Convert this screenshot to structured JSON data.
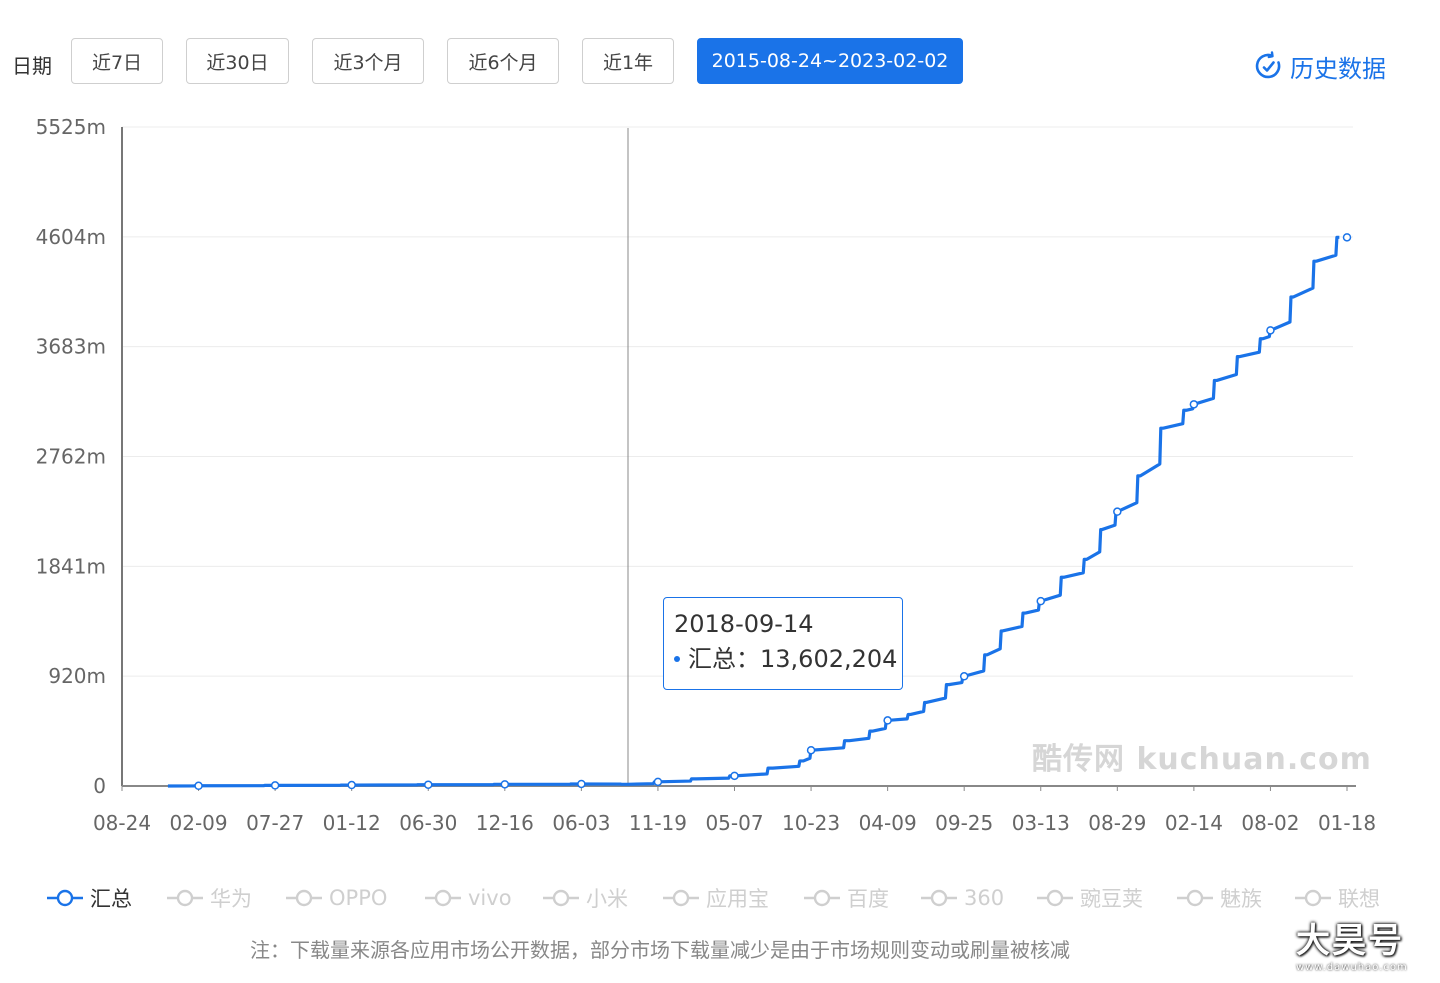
{
  "toolbar": {
    "date_label": "日期",
    "ranges": [
      "近7日",
      "近30日",
      "近3个月",
      "近6个月",
      "近1年",
      "2015-08-24~2023-02-02"
    ],
    "active_range": "2015-08-24~2023-02-02",
    "history_label": "历史数据"
  },
  "colors": {
    "accent": "#1a73e8",
    "inactive_legend": "#cfcfcf"
  },
  "chart_data": {
    "type": "line",
    "yticks": [
      "0",
      "920m",
      "1841m",
      "2762m",
      "3683m",
      "4604m",
      "5525m"
    ],
    "ylim": [
      0,
      5525
    ],
    "xticks": [
      "08-24",
      "02-09",
      "07-27",
      "01-12",
      "06-30",
      "12-16",
      "06-03",
      "11-19",
      "05-07",
      "10-23",
      "04-09",
      "09-25",
      "03-13",
      "08-29",
      "02-14",
      "08-02",
      "01-18"
    ],
    "grid": true,
    "series": [
      {
        "name": "汇总",
        "x_index": [
          0.6,
          1,
          2,
          3,
          4,
          5,
          6,
          6.6,
          7,
          7.5,
          8,
          8.5,
          8.9,
          9,
          9.5,
          9.8,
          10,
          10.3,
          10.5,
          10.8,
          11,
          11.3,
          11.5,
          11.8,
          12,
          12.3,
          12.6,
          12.8,
          13,
          13.3,
          13.6,
          13.9,
          14,
          14.3,
          14.6,
          14.9,
          15,
          15.3,
          15.6,
          15.9
        ],
        "values": [
          0,
          2,
          5,
          8,
          11,
          14,
          17,
          14,
          35,
          60,
          85,
          150,
          210,
          300,
          380,
          460,
          550,
          600,
          700,
          850,
          920,
          1100,
          1300,
          1450,
          1550,
          1750,
          1900,
          2150,
          2300,
          2600,
          3000,
          3150,
          3200,
          3400,
          3600,
          3750,
          3820,
          4100,
          4400,
          4600
        ]
      }
    ],
    "tooltip": {
      "date": "2018-09-14",
      "series": "汇总",
      "value": "13,602,204"
    },
    "watermark": "酷传网 kuchuan.com"
  },
  "legend": [
    {
      "label": "汇总",
      "active": true
    },
    {
      "label": "华为",
      "active": false
    },
    {
      "label": "OPPO",
      "active": false
    },
    {
      "label": "vivo",
      "active": false
    },
    {
      "label": "小米",
      "active": false
    },
    {
      "label": "应用宝",
      "active": false
    },
    {
      "label": "百度",
      "active": false
    },
    {
      "label": "360",
      "active": false
    },
    {
      "label": "豌豆荚",
      "active": false
    },
    {
      "label": "魅族",
      "active": false
    },
    {
      "label": "联想",
      "active": false
    }
  ],
  "note": "注：下载量来源各应用市场公开数据，部分市场下载量减少是由于市场规则变动或刷量被核减",
  "brand": {
    "logo_text": "大昊号",
    "url": "www.dawuhao.com"
  }
}
